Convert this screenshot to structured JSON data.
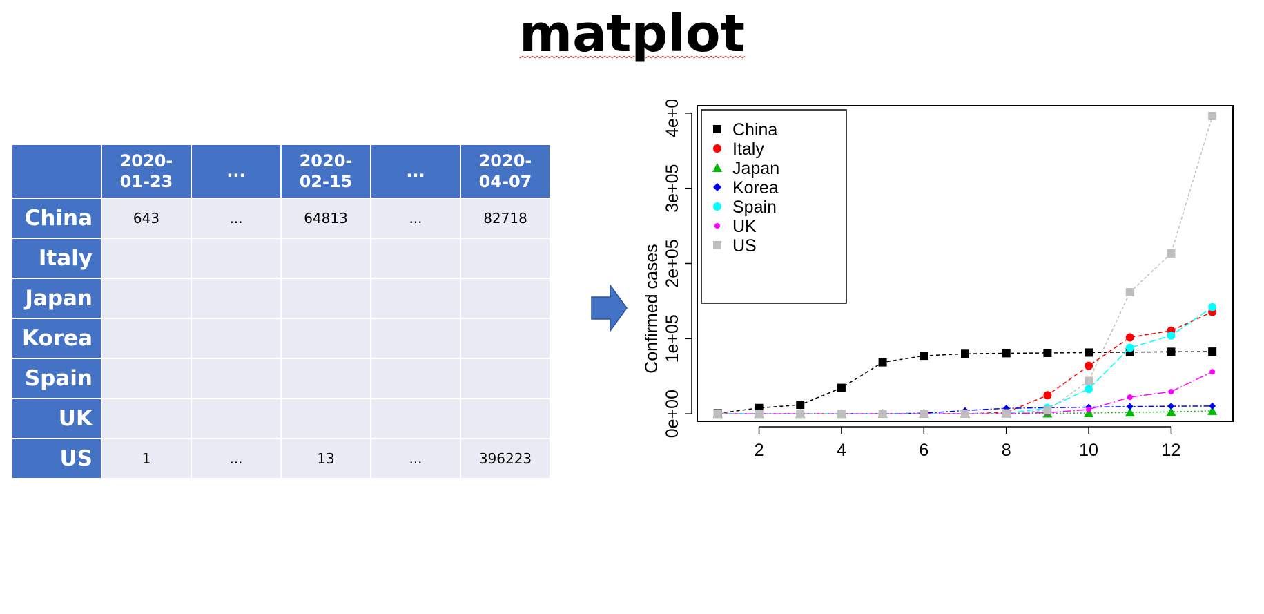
{
  "slide": {
    "title": "matplot"
  },
  "table": {
    "columns": [
      "",
      "2020-\n01-23",
      "...",
      "2020-\n02-15",
      "...",
      "2020-\n04-07"
    ],
    "rows": [
      {
        "label": "China",
        "cells": [
          "643",
          "...",
          "64813",
          "...",
          "82718"
        ]
      },
      {
        "label": "Italy",
        "cells": [
          "",
          "",
          "",
          "",
          ""
        ]
      },
      {
        "label": "Japan",
        "cells": [
          "",
          "",
          "",
          "",
          ""
        ]
      },
      {
        "label": "Korea",
        "cells": [
          "",
          "",
          "",
          "",
          ""
        ]
      },
      {
        "label": "Spain",
        "cells": [
          "",
          "",
          "",
          "",
          ""
        ]
      },
      {
        "label": "UK",
        "cells": [
          "",
          "",
          "",
          "",
          ""
        ]
      },
      {
        "label": "US",
        "cells": [
          "1",
          "...",
          "13",
          "...",
          "396223"
        ]
      }
    ]
  },
  "arrow": {
    "icon": "right-arrow-icon",
    "color": "#4472C4"
  },
  "chart_data": {
    "type": "line",
    "title": "",
    "xlabel": "",
    "ylabel": "Confirmed cases",
    "xlim": [
      0.5,
      13.5
    ],
    "ylim": [
      -10000,
      410000
    ],
    "xticks": [
      2,
      4,
      6,
      8,
      10,
      12
    ],
    "yticks": [
      0,
      100000,
      200000,
      300000,
      400000
    ],
    "ytick_labels": [
      "0e+00",
      "1e+05",
      "2e+05",
      "3e+05",
      "4e+05"
    ],
    "grid": false,
    "legend_position": "top-left",
    "x": [
      1,
      2,
      3,
      4,
      5,
      6,
      7,
      8,
      9,
      10,
      11,
      12,
      13
    ],
    "series": [
      {
        "name": "China",
        "color": "#000000",
        "marker": "square",
        "dash": "5,4",
        "values": [
          643,
          7700,
          12000,
          34500,
          68500,
          77200,
          79800,
          80600,
          81000,
          81500,
          82100,
          82500,
          82718
        ]
      },
      {
        "name": "Italy",
        "color": "#FF0000",
        "marker": "circle",
        "dash": "6,4",
        "values": [
          0,
          0,
          0,
          0,
          0,
          0,
          100,
          1700,
          24700,
          63900,
          101700,
          110600,
          135600
        ]
      },
      {
        "name": "Japan",
        "color": "#00BB00",
        "marker": "triangle",
        "dash": "2,3",
        "values": [
          0,
          10,
          20,
          30,
          100,
          200,
          300,
          400,
          600,
          1000,
          1800,
          2600,
          3900
        ]
      },
      {
        "name": "Korea",
        "color": "#0000FF",
        "marker": "diamond",
        "dash": "8,3,2,3",
        "values": [
          0,
          10,
          20,
          30,
          200,
          800,
          4300,
          7300,
          8100,
          8800,
          9600,
          10100,
          10300
        ]
      },
      {
        "name": "Spain",
        "color": "#00FFFF",
        "marker": "circle",
        "dash": "10,4",
        "values": [
          0,
          0,
          0,
          0,
          0,
          0,
          100,
          600,
          7700,
          33000,
          87900,
          104100,
          141900
        ]
      },
      {
        "name": "UK",
        "color": "#FF00FF",
        "marker": "circle",
        "dash": "12,3,2,3",
        "values": [
          0,
          0,
          0,
          0,
          0,
          0,
          100,
          200,
          1500,
          5700,
          22100,
          29500,
          55900
        ]
      },
      {
        "name": "US",
        "color": "#BEBEBE",
        "marker": "square",
        "dash": "4,3",
        "values": [
          1,
          5,
          6,
          8,
          12,
          15,
          100,
          500,
          4600,
          43800,
          161800,
          213400,
          396223
        ]
      }
    ]
  }
}
